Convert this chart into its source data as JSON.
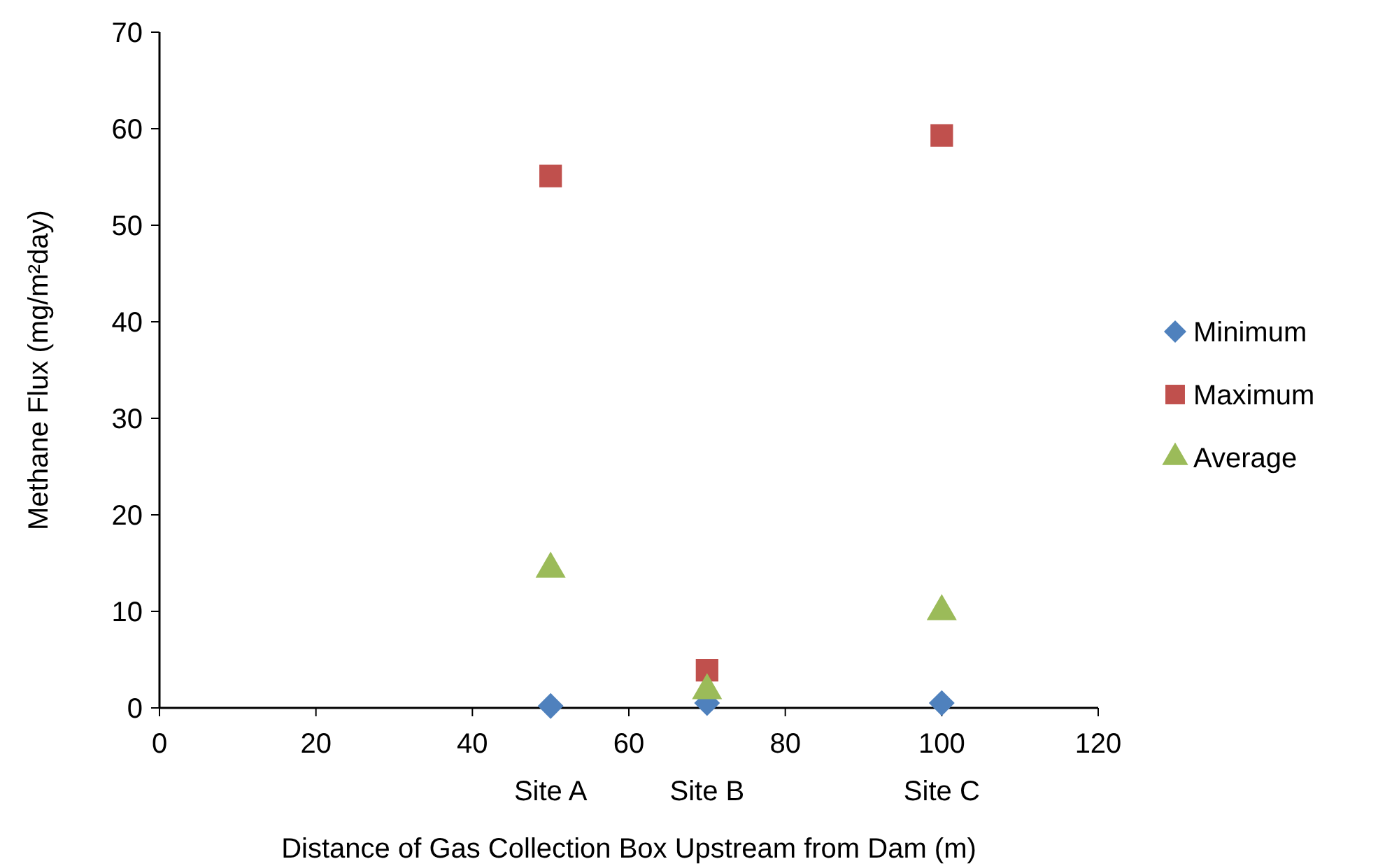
{
  "chart_data": {
    "type": "scatter",
    "xlabel": "Distance of Gas Collection Box Upstream from Dam (m)",
    "ylabel": "Methane Flux (mg/m²day)",
    "x": [
      50,
      70,
      100
    ],
    "series": [
      {
        "name": "Minimum",
        "color": "#4f81bd",
        "marker": "diamond",
        "values": [
          0.2,
          0.5,
          0.5
        ]
      },
      {
        "name": "Maximum",
        "color": "#c0504d",
        "marker": "square",
        "values": [
          55.1,
          3.9,
          59.3
        ]
      },
      {
        "name": "Average",
        "color": "#9bbb59",
        "marker": "triangle",
        "values": [
          14.4,
          1.8,
          10.0
        ]
      }
    ],
    "xlim": [
      0,
      120
    ],
    "xticks": [
      0,
      20,
      40,
      60,
      80,
      100,
      120
    ],
    "ylim": [
      0,
      70
    ],
    "yticks": [
      0,
      10,
      20,
      30,
      40,
      50,
      60,
      70
    ],
    "grid": false,
    "legend": "right",
    "annotations": [
      "Site A",
      "Site B",
      "Site C"
    ]
  }
}
